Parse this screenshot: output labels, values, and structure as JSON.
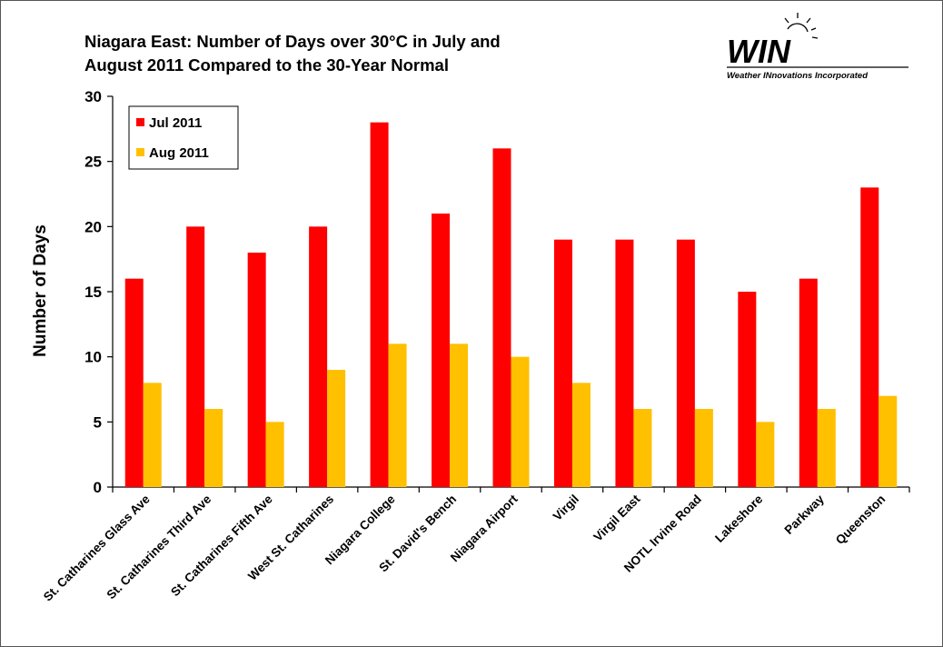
{
  "header": {
    "title_line1": "Niagara East: Number of Days over 30°C in July  and",
    "title_line2": "August 2011 Compared to the 30-Year Normal",
    "logo_text": "WIN",
    "logo_subtitle": "Weather INnovations Incorporated",
    "logo_icon": "sun-icon"
  },
  "chart_data": {
    "type": "bar",
    "title": "Niagara East: Number of Days over 30°C in July  and August 2011 Compared to the 30-Year Normal",
    "xlabel": "",
    "ylabel": "Number of Days",
    "ylim": [
      0,
      30
    ],
    "yticks": [
      0,
      5,
      10,
      15,
      20,
      25,
      30
    ],
    "grid": false,
    "legend_position": "top-left",
    "categories": [
      "St. Catharines Glass Ave",
      "St. Catharines Third Ave",
      "St. Catharines Fifth Ave",
      "West St. Catharines",
      "Niagara College",
      "St. David's Bench",
      "Niagara Airport",
      "Virgil",
      "Virgil East",
      "NOTL Irvine Road",
      "Lakeshore",
      "Parkway",
      "Queenston"
    ],
    "series": [
      {
        "name": "Jul 2011",
        "color": "#ff0000",
        "values": [
          16,
          20,
          18,
          20,
          28,
          21,
          26,
          19,
          19,
          19,
          15,
          16,
          23
        ]
      },
      {
        "name": "Aug 2011",
        "color": "#ffc000",
        "values": [
          8,
          6,
          5,
          9,
          11,
          11,
          10,
          8,
          6,
          6,
          5,
          6,
          7
        ]
      }
    ]
  }
}
